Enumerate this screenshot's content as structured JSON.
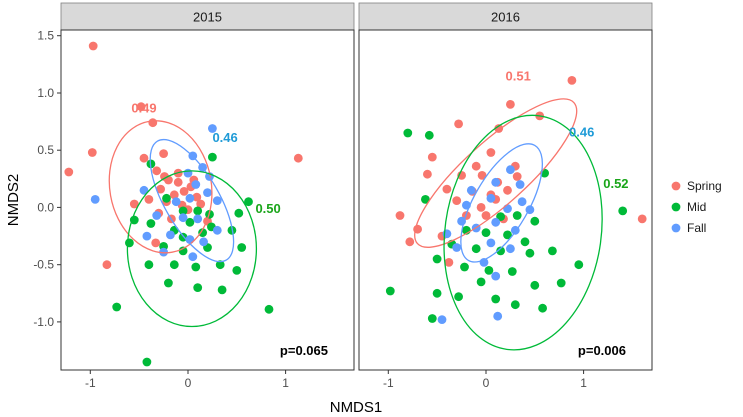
{
  "chart_data": {
    "type": "scatter",
    "xlabel": "NMDS1",
    "ylabel": "NMDS2",
    "xlim": [
      -1.3,
      1.7
    ],
    "ylim": [
      -1.42,
      1.55
    ],
    "x_ticks": [
      -1,
      0,
      1
    ],
    "y_ticks": [
      -1.0,
      -0.5,
      0.0,
      0.5,
      1.0,
      1.5
    ],
    "x_tick_labels": [
      "-1",
      "0",
      "1"
    ],
    "y_tick_labels": [
      "-1.0",
      "-0.5",
      "0.0",
      "0.5",
      "1.0",
      "1.5"
    ],
    "legend_position": "right",
    "legend": [
      {
        "name": "Spring",
        "color": "#F8766D"
      },
      {
        "name": "Mid",
        "color": "#00BA38"
      },
      {
        "name": "Fall",
        "color": "#619CFF"
      }
    ],
    "panels": [
      {
        "strip": "2015",
        "p_value": "p=0.065",
        "ellipse_labels": [
          {
            "group": "Spring",
            "text": "0.49",
            "x": -0.45,
            "y": 0.83
          },
          {
            "group": "Fall",
            "text": "0.46",
            "x": 0.38,
            "y": 0.57
          },
          {
            "group": "Mid",
            "text": "0.50",
            "x": 0.82,
            "y": -0.05
          }
        ],
        "ellipses": [
          {
            "group": "Spring",
            "cx": -0.28,
            "cy": 0.18,
            "rx": 0.52,
            "ry": 0.58,
            "angle": -10
          },
          {
            "group": "Fall",
            "cx": 0.04,
            "cy": 0.06,
            "rx": 0.28,
            "ry": 0.6,
            "angle": -30
          },
          {
            "group": "Mid",
            "cx": 0.04,
            "cy": -0.36,
            "rx": 0.66,
            "ry": 0.68,
            "angle": 0
          }
        ],
        "series": [
          {
            "name": "Spring",
            "points": [
              [
                -0.97,
                1.41
              ],
              [
                -0.98,
                0.48
              ],
              [
                -1.22,
                0.31
              ],
              [
                -0.48,
                0.88
              ],
              [
                -0.36,
                0.74
              ],
              [
                -0.25,
                0.47
              ],
              [
                -0.45,
                0.43
              ],
              [
                -0.32,
                0.32
              ],
              [
                -0.2,
                0.24
              ],
              [
                -0.1,
                0.22
              ],
              [
                -0.28,
                0.16
              ],
              [
                -0.14,
                0.11
              ],
              [
                -0.04,
                0.14
              ],
              [
                0.03,
                0.18
              ],
              [
                0.09,
                0.09
              ],
              [
                -0.4,
                0.07
              ],
              [
                -0.22,
                0.05
              ],
              [
                -0.06,
                0.02
              ],
              [
                0.13,
                0.03
              ],
              [
                -0.55,
                0.03
              ],
              [
                -0.3,
                -0.05
              ],
              [
                -0.17,
                -0.1
              ],
              [
                0.0,
                -0.02
              ],
              [
                -0.33,
                -0.31
              ],
              [
                -0.83,
                -0.5
              ],
              [
                1.13,
                0.43
              ],
              [
                0.2,
                -0.12
              ],
              [
                -0.1,
                0.3
              ],
              [
                0.06,
                0.24
              ],
              [
                -0.24,
                0.27
              ]
            ]
          },
          {
            "name": "Mid",
            "points": [
              [
                -0.42,
                -1.35
              ],
              [
                -0.73,
                -0.87
              ],
              [
                -0.38,
                0.38
              ],
              [
                0.25,
                0.44
              ],
              [
                -0.22,
                0.08
              ],
              [
                -0.05,
                -0.03
              ],
              [
                0.1,
                -0.03
              ],
              [
                0.22,
                -0.06
              ],
              [
                0.52,
                -0.05
              ],
              [
                -0.55,
                -0.11
              ],
              [
                -0.38,
                -0.14
              ],
              [
                -0.14,
                -0.2
              ],
              [
                0.02,
                -0.13
              ],
              [
                0.24,
                -0.17
              ],
              [
                0.45,
                -0.2
              ],
              [
                0.62,
                0.05
              ],
              [
                -0.6,
                -0.31
              ],
              [
                -0.25,
                -0.34
              ],
              [
                -0.05,
                -0.38
              ],
              [
                0.2,
                -0.35
              ],
              [
                -0.4,
                -0.5
              ],
              [
                -0.14,
                -0.5
              ],
              [
                0.08,
                -0.52
              ],
              [
                0.33,
                -0.5
              ],
              [
                0.5,
                -0.55
              ],
              [
                -0.2,
                -0.66
              ],
              [
                0.1,
                -0.7
              ],
              [
                0.35,
                -0.72
              ],
              [
                0.83,
                -0.89
              ],
              [
                0.55,
                -0.35
              ],
              [
                -0.05,
                -0.26
              ],
              [
                0.15,
                -0.22
              ]
            ]
          },
          {
            "name": "Fall",
            "points": [
              [
                0.25,
                0.69
              ],
              [
                -0.95,
                0.07
              ],
              [
                0.05,
                0.45
              ],
              [
                0.15,
                0.35
              ],
              [
                0.22,
                0.27
              ],
              [
                0.0,
                0.3
              ],
              [
                0.08,
                0.2
              ],
              [
                0.2,
                0.13
              ],
              [
                0.3,
                0.06
              ],
              [
                -0.12,
                0.05
              ],
              [
                0.02,
                0.08
              ],
              [
                -0.05,
                -0.09
              ],
              [
                0.1,
                -0.1
              ],
              [
                -0.32,
                -0.07
              ],
              [
                -0.18,
                -0.24
              ],
              [
                0.02,
                -0.28
              ],
              [
                0.16,
                -0.3
              ],
              [
                -0.42,
                -0.25
              ],
              [
                -0.25,
                -0.39
              ],
              [
                0.05,
                -0.43
              ],
              [
                -0.45,
                0.15
              ],
              [
                0.3,
                -0.2
              ]
            ]
          }
        ]
      },
      {
        "strip": "2016",
        "p_value": "p=0.006",
        "ellipse_labels": [
          {
            "group": "Spring",
            "text": "0.51",
            "x": 0.33,
            "y": 1.11
          },
          {
            "group": "Fall",
            "text": "0.46",
            "x": 0.98,
            "y": 0.62
          },
          {
            "group": "Mid",
            "text": "0.52",
            "x": 1.33,
            "y": 0.17
          }
        ],
        "ellipses": [
          {
            "group": "Spring",
            "cx": 0.1,
            "cy": 0.3,
            "rx": 0.32,
            "ry": 0.92,
            "angle": 48
          },
          {
            "group": "Fall",
            "cx": 0.16,
            "cy": 0.04,
            "rx": 0.28,
            "ry": 0.58,
            "angle": 30
          },
          {
            "group": "Mid",
            "cx": 0.38,
            "cy": -0.22,
            "rx": 0.8,
            "ry": 1.03,
            "angle": 8
          }
        ],
        "series": [
          {
            "name": "Spring",
            "points": [
              [
                0.88,
                1.11
              ],
              [
                0.25,
                0.9
              ],
              [
                0.55,
                0.8
              ],
              [
                -0.28,
                0.73
              ],
              [
                0.13,
                0.69
              ],
              [
                -0.55,
                0.44
              ],
              [
                0.05,
                0.48
              ],
              [
                -0.1,
                0.36
              ],
              [
                0.3,
                0.36
              ],
              [
                -0.25,
                0.28
              ],
              [
                -0.04,
                0.28
              ],
              [
                0.12,
                0.22
              ],
              [
                -0.6,
                0.29
              ],
              [
                -0.14,
                0.14
              ],
              [
                0.05,
                0.11
              ],
              [
                0.22,
                0.15
              ],
              [
                -0.3,
                0.06
              ],
              [
                -0.05,
                0.0
              ],
              [
                0.1,
                0.07
              ],
              [
                -0.2,
                -0.07
              ],
              [
                0.0,
                -0.07
              ],
              [
                0.18,
                -0.1
              ],
              [
                -0.88,
                -0.07
              ],
              [
                -0.7,
                -0.19
              ],
              [
                -0.45,
                -0.25
              ],
              [
                -0.78,
                -0.3
              ],
              [
                -0.38,
                -0.48
              ],
              [
                1.6,
                -0.1
              ],
              [
                0.32,
                0.27
              ],
              [
                -0.4,
                0.16
              ]
            ]
          },
          {
            "name": "Mid",
            "points": [
              [
                -0.8,
                0.65
              ],
              [
                -0.58,
                0.63
              ],
              [
                -0.62,
                0.07
              ],
              [
                0.6,
                0.3
              ],
              [
                1.4,
                -0.03
              ],
              [
                0.15,
                -0.08
              ],
              [
                0.32,
                -0.07
              ],
              [
                0.5,
                -0.12
              ],
              [
                -0.2,
                -0.2
              ],
              [
                0.0,
                -0.22
              ],
              [
                0.22,
                -0.24
              ],
              [
                0.4,
                -0.3
              ],
              [
                -0.35,
                -0.32
              ],
              [
                -0.1,
                -0.36
              ],
              [
                0.15,
                -0.38
              ],
              [
                0.45,
                -0.4
              ],
              [
                0.68,
                -0.38
              ],
              [
                -0.5,
                -0.45
              ],
              [
                -0.22,
                -0.52
              ],
              [
                0.03,
                -0.55
              ],
              [
                0.27,
                -0.56
              ],
              [
                0.95,
                -0.5
              ],
              [
                -0.05,
                -0.65
              ],
              [
                0.5,
                -0.68
              ],
              [
                0.77,
                -0.66
              ],
              [
                -0.98,
                -0.73
              ],
              [
                -0.5,
                -0.75
              ],
              [
                -0.28,
                -0.78
              ],
              [
                0.1,
                -0.8
              ],
              [
                0.3,
                -0.85
              ],
              [
                -0.55,
                -0.97
              ],
              [
                0.58,
                -0.88
              ]
            ]
          },
          {
            "name": "Fall",
            "points": [
              [
                0.1,
                0.22
              ],
              [
                0.25,
                0.33
              ],
              [
                0.35,
                0.2
              ],
              [
                0.05,
                0.08
              ],
              [
                -0.2,
                0.02
              ],
              [
                0.22,
                -0.01
              ],
              [
                0.45,
                -0.02
              ],
              [
                -0.25,
                -0.12
              ],
              [
                -0.1,
                -0.18
              ],
              [
                0.1,
                -0.13
              ],
              [
                0.3,
                -0.2
              ],
              [
                -0.4,
                -0.23
              ],
              [
                0.05,
                -0.31
              ],
              [
                0.25,
                -0.36
              ],
              [
                -0.02,
                -0.48
              ],
              [
                -0.3,
                -0.35
              ],
              [
                0.1,
                -0.6
              ],
              [
                -0.45,
                -0.98
              ],
              [
                0.12,
                -0.95
              ],
              [
                0.37,
                0.05
              ],
              [
                -0.15,
                0.15
              ]
            ]
          }
        ]
      }
    ]
  }
}
